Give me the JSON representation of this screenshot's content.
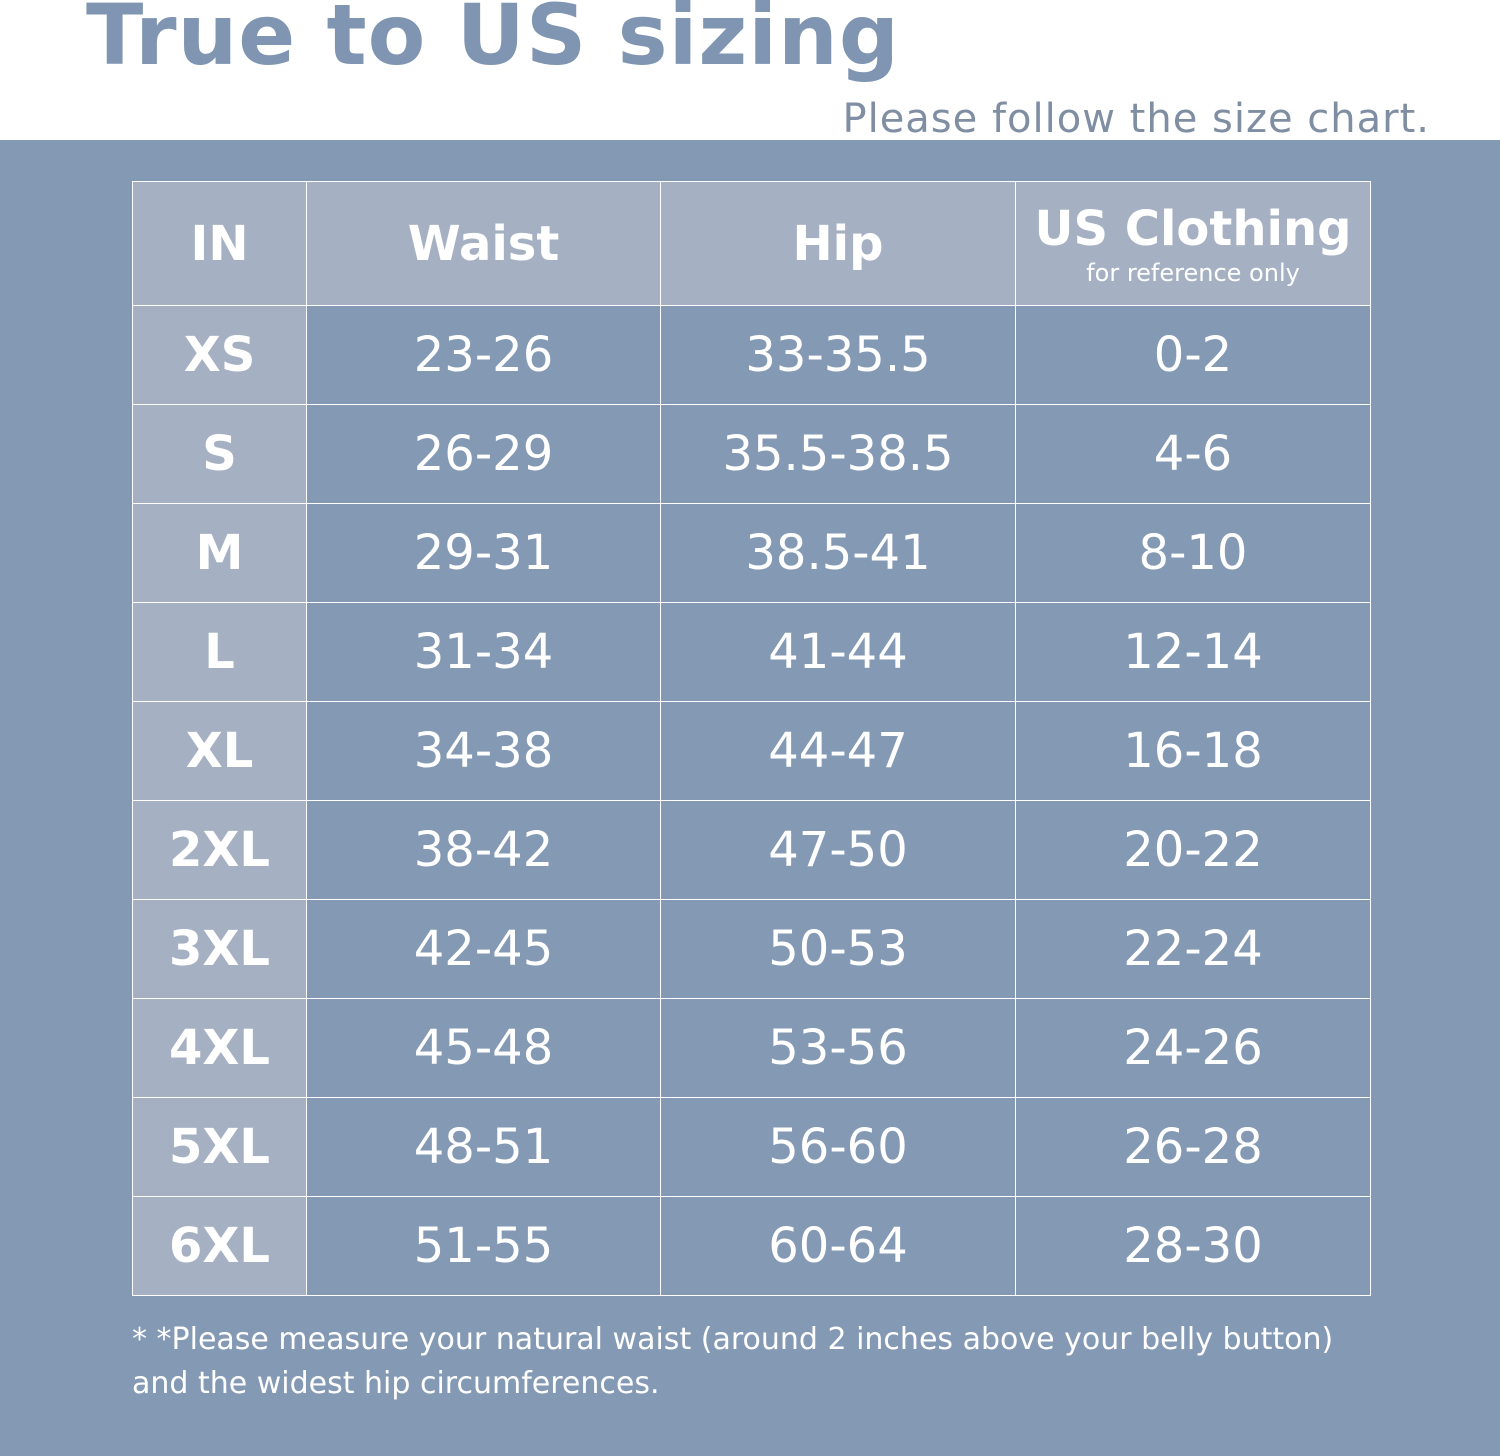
{
  "header": {
    "title": "True to US sizing",
    "subtitle": "Please follow the size chart."
  },
  "table": {
    "columns": [
      "IN",
      "Waist",
      "Hip",
      "US Clothing"
    ],
    "column_note": "for reference only",
    "rows": [
      [
        "XS",
        "23-26",
        "33-35.5",
        "0-2"
      ],
      [
        "S",
        "26-29",
        "35.5-38.5",
        "4-6"
      ],
      [
        "M",
        "29-31",
        "38.5-41",
        "8-10"
      ],
      [
        "L",
        "31-34",
        "41-44",
        "12-14"
      ],
      [
        "XL",
        "34-38",
        "44-47",
        "16-18"
      ],
      [
        "2XL",
        "38-42",
        "47-50",
        "20-22"
      ],
      [
        "3XL",
        "42-45",
        "50-53",
        "22-24"
      ],
      [
        "4XL",
        "45-48",
        "53-56",
        "24-26"
      ],
      [
        "5XL",
        "48-51",
        "56-60",
        "26-28"
      ],
      [
        "6XL",
        "51-55",
        "60-64",
        "28-30"
      ]
    ]
  },
  "footnote": "* *Please measure your natural waist (around 2 inches above your belly button) and the widest hip circumferences."
}
